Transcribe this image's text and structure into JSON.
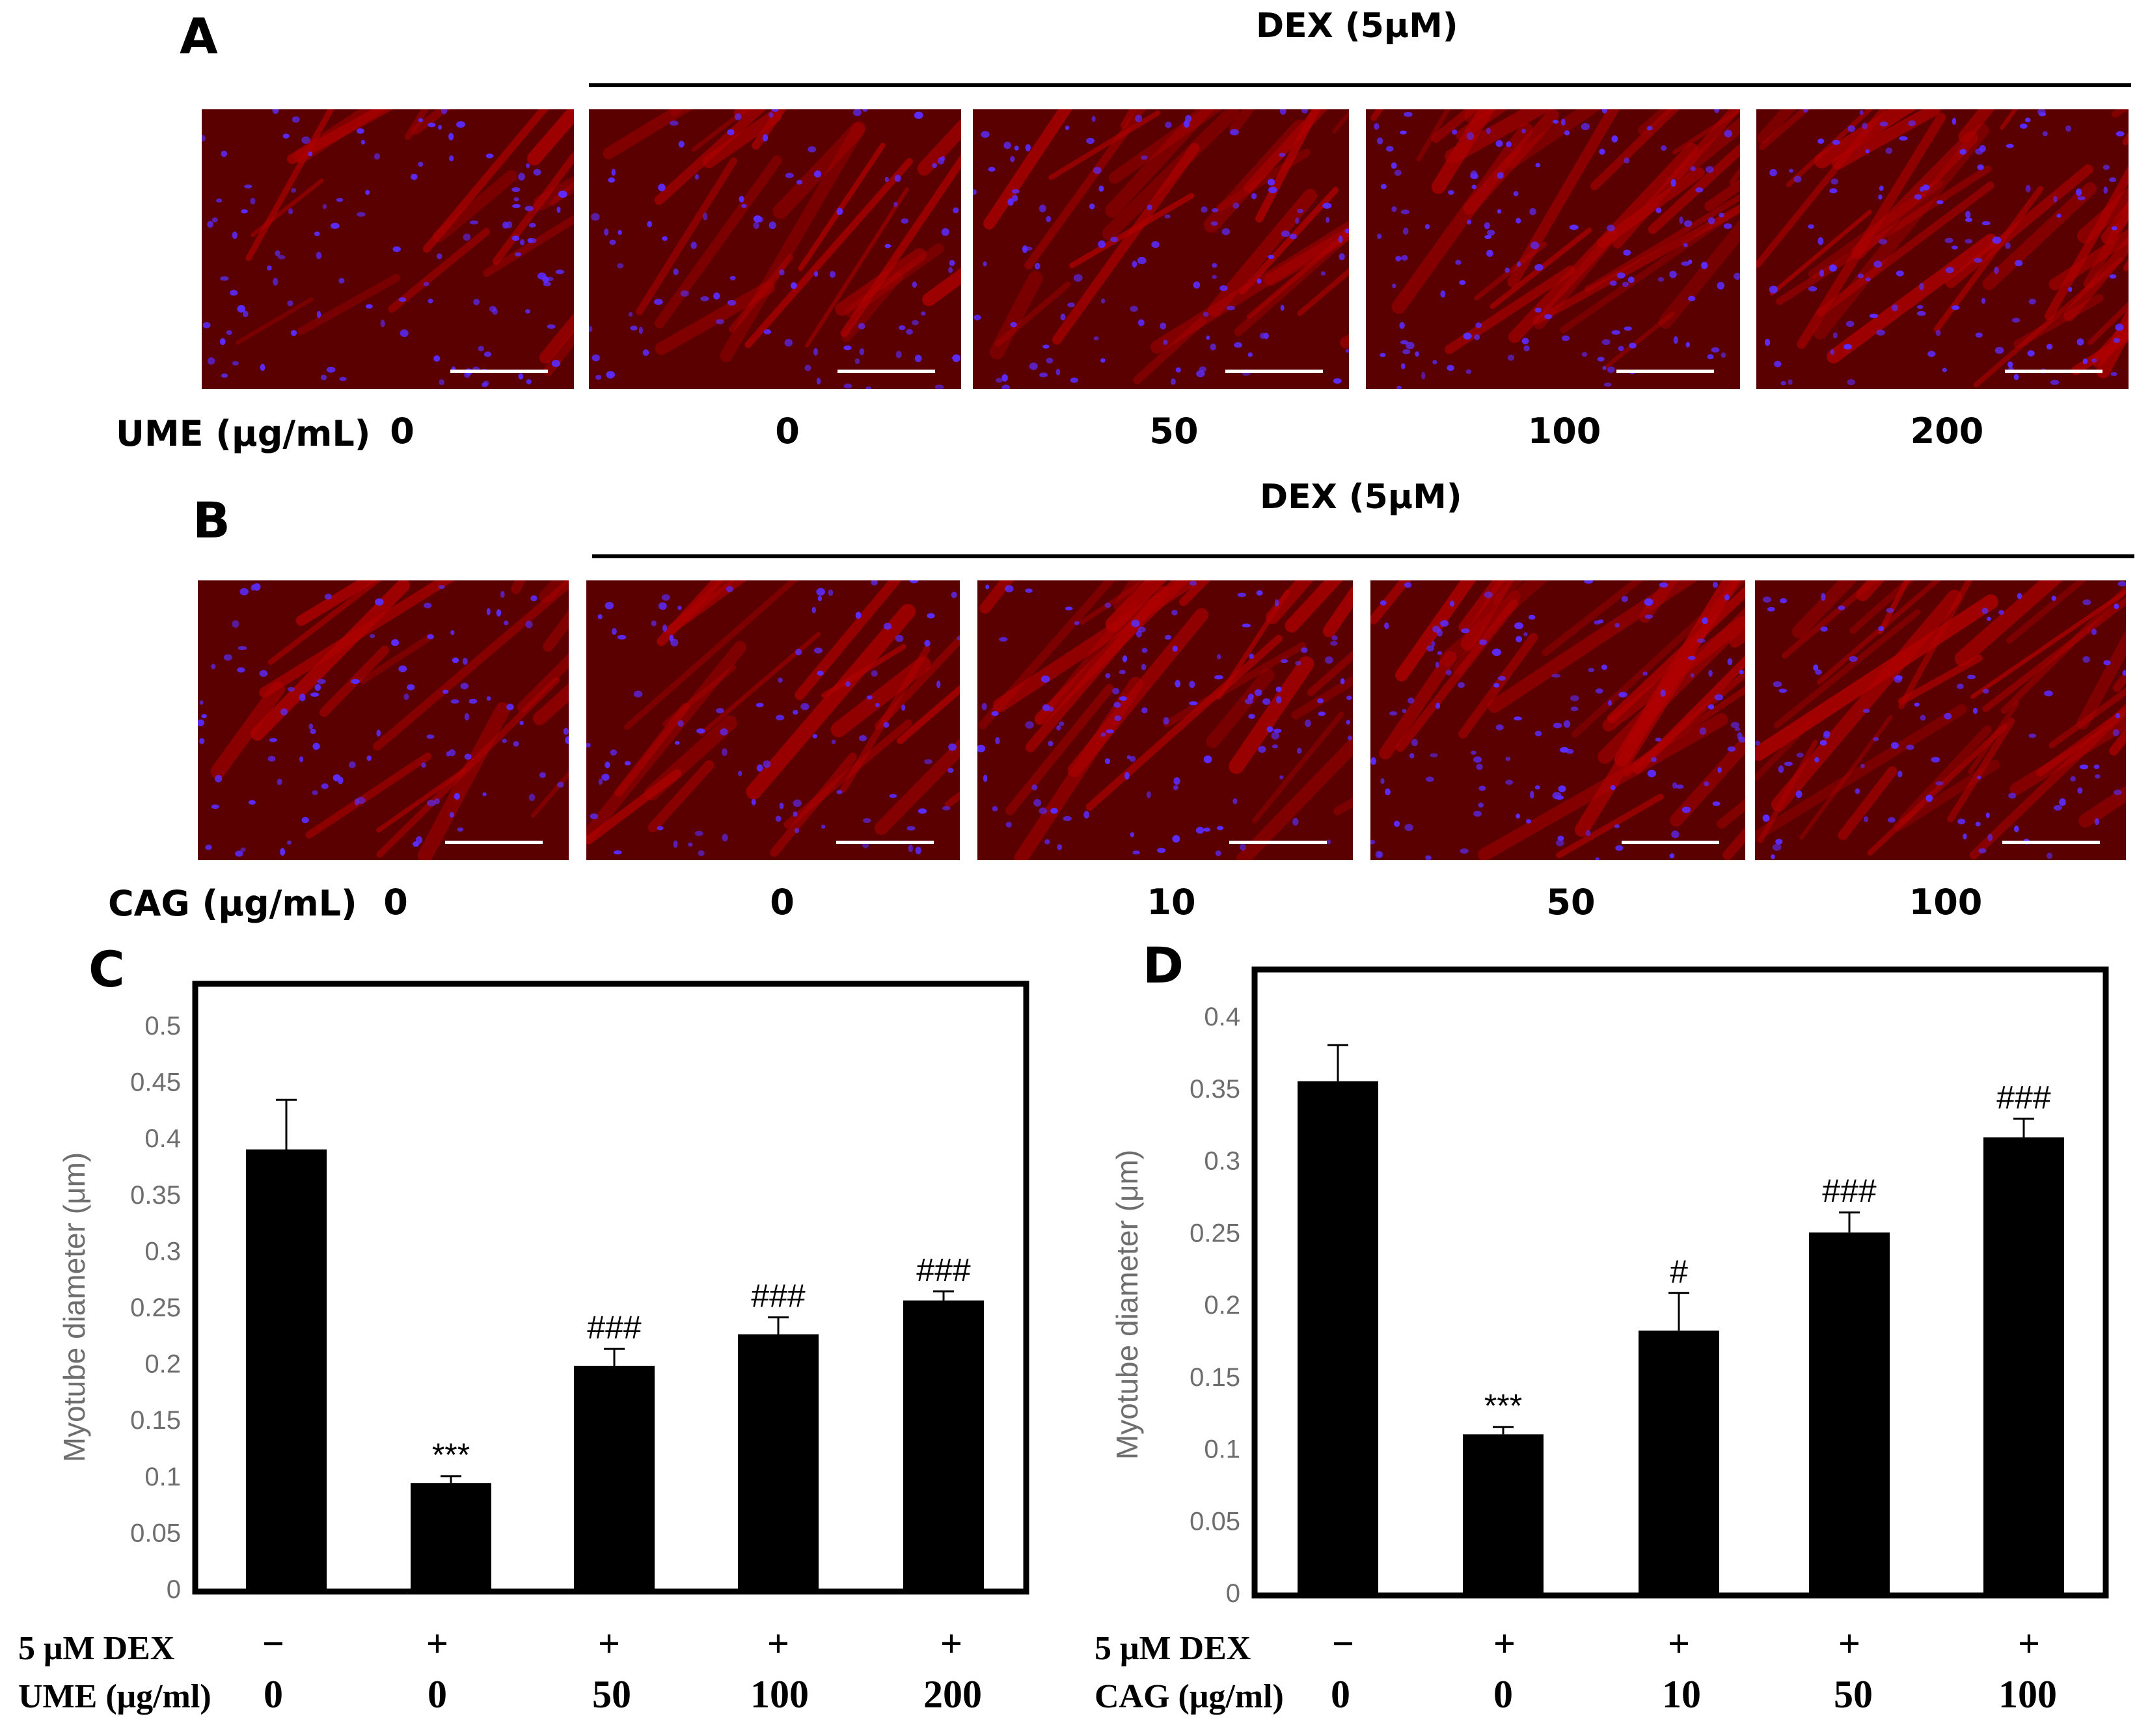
{
  "panels": {
    "A": {
      "letter": "A",
      "dex_label": "DEX (5μM)",
      "dose_title": "UME (μg/mL)",
      "doses": [
        "0",
        "0",
        "50",
        "100",
        "200"
      ]
    },
    "B": {
      "letter": "B",
      "dex_label": "DEX (5μM)",
      "dose_title": "CAG (μg/mL)",
      "doses": [
        "0",
        "0",
        "10",
        "50",
        "100"
      ]
    }
  },
  "colors": {
    "micrograph_red": "#b00000",
    "micrograph_dark": "#5a0000",
    "nuclei_blue": "#5a2cff",
    "bar": "#000000",
    "axis_text": "#6e6e6e"
  },
  "chart_data": [
    {
      "panel": "C",
      "type": "bar",
      "ylabel": "Myotube diameter  (μm)",
      "ylim": [
        0,
        0.5
      ],
      "yticks": [
        "0",
        "0.05",
        "0.1",
        "0.15",
        "0.2",
        "0.25",
        "0.3",
        "0.35",
        "0.4",
        "0.45",
        "0.5"
      ],
      "values": [
        0.39,
        0.094,
        0.198,
        0.226,
        0.256
      ],
      "errors": [
        0.044,
        0.006,
        0.015,
        0.015,
        0.008
      ],
      "annotations": [
        "",
        "***",
        "###",
        "###",
        "###"
      ],
      "row1_label": "5 μM DEX",
      "row1": [
        "−",
        "+",
        "+",
        "+",
        "+"
      ],
      "row2_label": "UME (μg/ml)",
      "row2": [
        "0",
        "0",
        "50",
        "100",
        "200"
      ],
      "grid": false
    },
    {
      "panel": "D",
      "type": "bar",
      "ylabel": "Myotube diameter  (μm)",
      "ylim": [
        0,
        0.4
      ],
      "yticks": [
        "0",
        "0.05",
        "0.1",
        "0.15",
        "0.2",
        "0.25",
        "0.3",
        "0.35",
        "0.4"
      ],
      "values": [
        0.355,
        0.11,
        0.182,
        0.25,
        0.316
      ],
      "errors": [
        0.025,
        0.005,
        0.026,
        0.014,
        0.013
      ],
      "annotations": [
        "",
        "***",
        "#",
        "###",
        "###"
      ],
      "row1_label": "5 μM DEX",
      "row1": [
        "−",
        "+",
        "+",
        "+",
        "+"
      ],
      "row2_label": "CAG (μg/ml)",
      "row2": [
        "0",
        "0",
        "10",
        "50",
        "100"
      ],
      "grid": false
    }
  ]
}
